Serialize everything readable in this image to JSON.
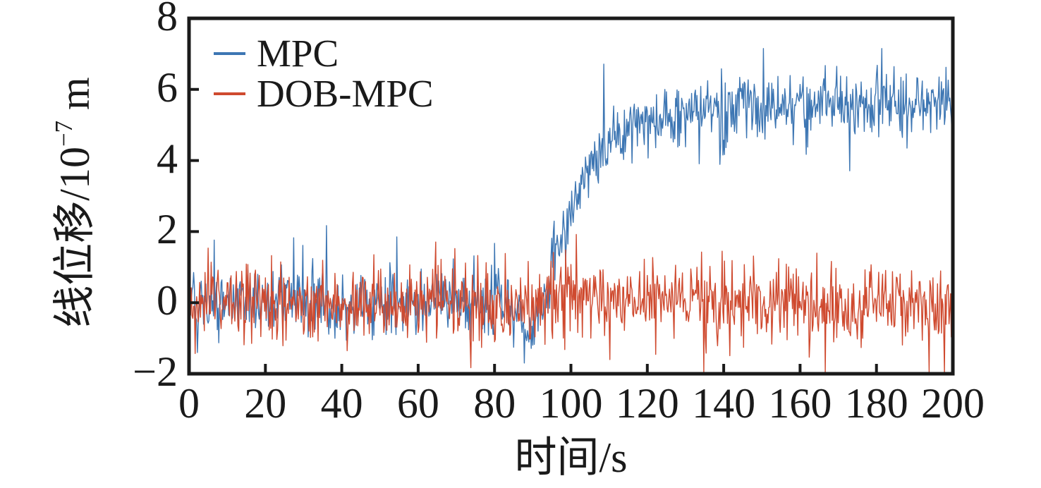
{
  "chart_data": {
    "type": "line",
    "title": "",
    "xlabel": "时间/s",
    "ylabel": "线位移/10−7 m",
    "ylabel_parts": {
      "prefix": "线位移/10",
      "exponent": "−7",
      "suffix": " m"
    },
    "xlim": [
      0,
      200
    ],
    "ylim": [
      -2,
      8
    ],
    "xtick_values": [
      0,
      20,
      40,
      60,
      80,
      100,
      120,
      140,
      160,
      180,
      200
    ],
    "xtick_labels": [
      "0",
      "20",
      "40",
      "60",
      "80",
      "100",
      "120",
      "140",
      "160",
      "180",
      "200"
    ],
    "ytick_values": [
      -2,
      0,
      2,
      4,
      6,
      8
    ],
    "ytick_labels": [
      "−2",
      "0",
      "2",
      "4",
      "6",
      "8"
    ],
    "grid": false,
    "tick_direction": "in",
    "legend_position": "upper-left",
    "axis_color": "#1a1a1a",
    "background_color": "#ffffff",
    "series": [
      {
        "name": "MPC",
        "color": "#3d76b3",
        "behavior": "zero-mean measurement noise until ~90 s, brief dip to about -0.8, then first-order rise after t=93 s to a noisy plateau near 5.6",
        "baseline_mean": 0,
        "noise_sigma": 0.48,
        "noise_spike_probability": 0.03,
        "noise_spike_scale": 2.2,
        "dip_start_s": 86,
        "dip_end_s": 93,
        "dip_depth": -0.75,
        "step_time_s": 93,
        "rise_tau_s": 11.5,
        "final_mean": 5.6,
        "observed_min": -1.9,
        "observed_max": 7.15,
        "sample_interval_s": 0.2
      },
      {
        "name": "DOB-MPC",
        "color": "#cf4a2f",
        "behavior": "zero-mean measurement noise over the whole 0-200 s span (disturbance rejected)",
        "baseline_mean": 0,
        "noise_sigma": 0.55,
        "noise_spike_probability": 0.03,
        "noise_spike_scale": 2.2,
        "dip_start_s": null,
        "dip_end_s": null,
        "dip_depth": 0,
        "step_time_s": null,
        "rise_tau_s": null,
        "final_mean": 0,
        "observed_min": -1.95,
        "observed_max": 2.2,
        "sample_interval_s": 0.2
      }
    ]
  }
}
